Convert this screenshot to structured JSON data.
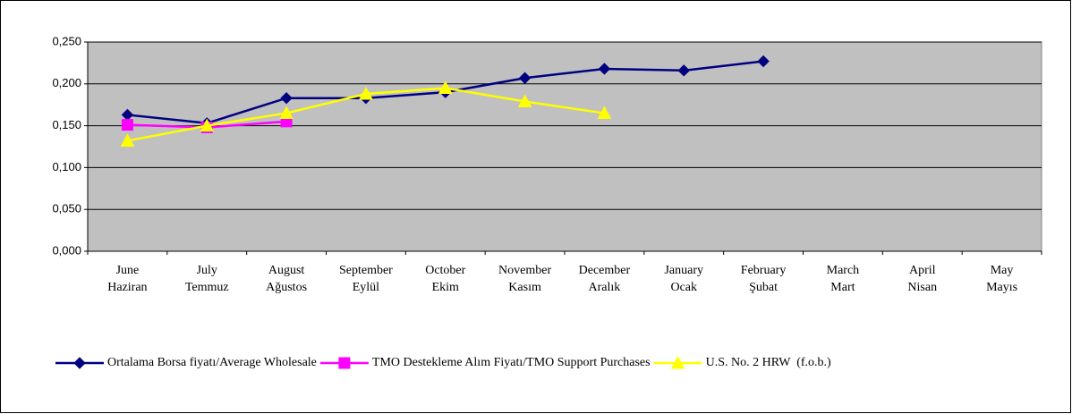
{
  "chart_data": {
    "type": "line",
    "categories": [
      [
        "June",
        "Haziran"
      ],
      [
        "July",
        "Temmuz"
      ],
      [
        "August",
        "Ağustos"
      ],
      [
        "September",
        "Eylül"
      ],
      [
        "October",
        "Ekim"
      ],
      [
        "November",
        "Kasım"
      ],
      [
        "December",
        "Aralık"
      ],
      [
        "January",
        "Ocak"
      ],
      [
        "February",
        "Şubat"
      ],
      [
        "March",
        "Mart"
      ],
      [
        "April",
        "Nisan"
      ],
      [
        "May",
        "Mayıs"
      ]
    ],
    "series": [
      {
        "name": "Ortalama Borsa fiyatı/Average Wholesale",
        "color": "#000080",
        "marker": "diamond",
        "values": [
          0.163,
          0.153,
          0.183,
          0.183,
          0.19,
          0.207,
          0.218,
          0.216,
          0.227,
          null,
          null,
          null
        ]
      },
      {
        "name": "TMO Destekleme Alım Fiyatı/TMO Support Purchases",
        "color": "#ff00ff",
        "marker": "square",
        "values": [
          0.151,
          0.148,
          0.155,
          null,
          null,
          null,
          null,
          null,
          null,
          null,
          null,
          null
        ]
      },
      {
        "name": "U.S. No. 2 HRW  (f.o.b.)",
        "color": "#ffff00",
        "marker": "triangle",
        "values": [
          0.132,
          0.15,
          0.165,
          0.188,
          0.195,
          0.179,
          0.165,
          null,
          null,
          null,
          null,
          null
        ]
      }
    ],
    "ylim": [
      0,
      0.25
    ],
    "yticks": [
      {
        "value": 0,
        "label": "0,000"
      },
      {
        "value": 0.05,
        "label": "0,050"
      },
      {
        "value": 0.1,
        "label": "0,100"
      },
      {
        "value": 0.15,
        "label": "0,150"
      },
      {
        "value": 0.2,
        "label": "0,200"
      },
      {
        "value": 0.25,
        "label": "0,250"
      }
    ],
    "grid": true,
    "legend": "bottom",
    "plot_background": "#c0c0c0"
  }
}
